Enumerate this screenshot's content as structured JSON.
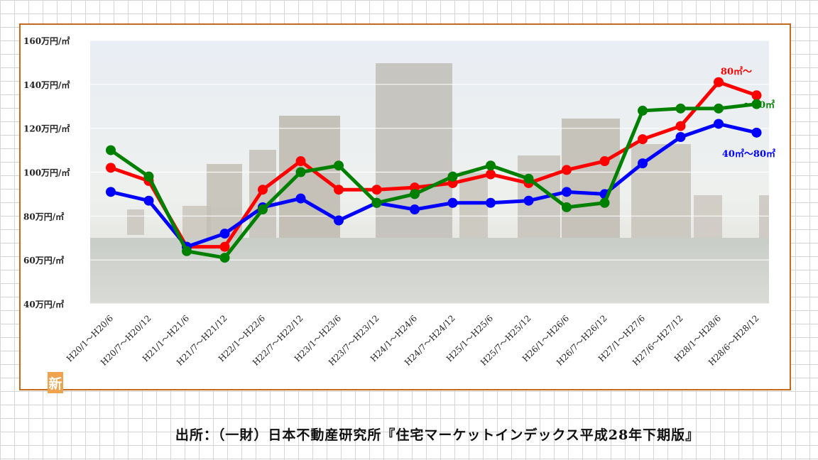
{
  "chart_data": {
    "type": "line",
    "x": [
      "H20/1～H20/6",
      "H20/7～H20/12",
      "H21/1～H21/6",
      "H21/7～H21/12",
      "H22/1～H22/6",
      "H22/7～H22/12",
      "H23/1～H23/6",
      "H23/7～H23/12",
      "H24/1～H24/6",
      "H24/7～H24/12",
      "H25/1～H25/6",
      "H25/7～H25/12",
      "H26/1～H26/6",
      "H26/7～H26/12",
      "H27/1～H27/6",
      "H27/6～H27/12",
      "H28/1～H28/6",
      "H28/6～H28/12"
    ],
    "ylim": [
      40,
      160
    ],
    "yticks": [
      40,
      60,
      80,
      100,
      120,
      140,
      160
    ],
    "ytick_labels": [
      "40万円/㎡",
      "60万円/㎡",
      "80万円/㎡",
      "100万円/㎡",
      "120万円/㎡",
      "140万円/㎡",
      "160万円/㎡"
    ],
    "grid": true,
    "series": [
      {
        "name": "80㎡～",
        "color": "#ff0000",
        "values": [
          102,
          96,
          66,
          66,
          92,
          105,
          92,
          92,
          93,
          95,
          99,
          95,
          101,
          105,
          115,
          121,
          141,
          135
        ]
      },
      {
        "name": "40㎡～80㎡",
        "color": "#0000ff",
        "values": [
          91,
          87,
          66,
          72,
          84,
          88,
          78,
          86,
          83,
          86,
          86,
          87,
          91,
          90,
          104,
          116,
          122,
          118
        ]
      },
      {
        "name": "～40㎡",
        "color": "#008000",
        "values": [
          110,
          98,
          64,
          61,
          83,
          100,
          103,
          86,
          90,
          98,
          103,
          97,
          84,
          86,
          128,
          129,
          129,
          131
        ]
      }
    ]
  },
  "badge": "新",
  "source": "出所：（一財）日本不動産研究所『住宅マーケットインデックス平成28年下期版』"
}
